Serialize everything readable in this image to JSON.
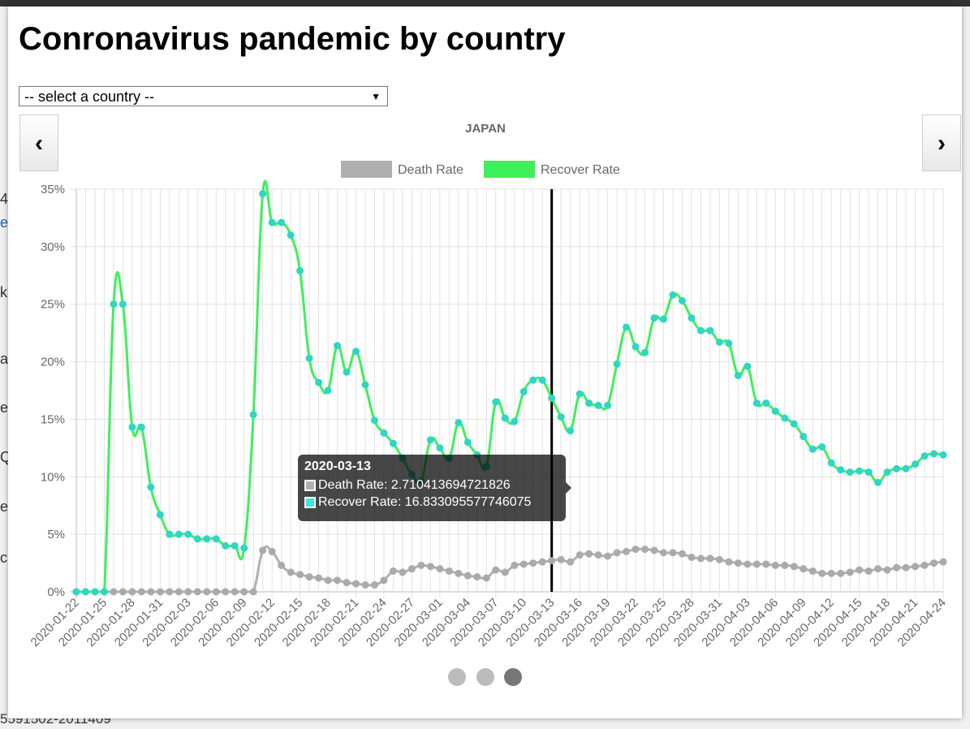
{
  "page": {
    "title": "Conronavirus pandemic by country",
    "select_placeholder": "-- select a country --",
    "prev_button": "‹",
    "next_button": "›",
    "background_fragments": [
      "4",
      "et",
      "k",
      "ac",
      "e",
      "Q",
      "e",
      "c"
    ],
    "background_footer": "5591502-2011409"
  },
  "chart_data": {
    "type": "line",
    "title": "JAPAN",
    "categories": [
      "2020-01-22",
      null,
      null,
      "2020-01-25",
      null,
      null,
      "2020-01-28",
      null,
      null,
      "2020-01-31",
      null,
      null,
      "2020-02-03",
      null,
      null,
      "2020-02-06",
      null,
      null,
      "2020-02-09",
      null,
      null,
      "2020-02-12",
      null,
      null,
      "2020-02-15",
      null,
      null,
      "2020-02-18",
      null,
      null,
      "2020-02-21",
      null,
      null,
      "2020-02-24",
      null,
      null,
      "2020-02-27",
      null,
      null,
      "2020-03-01",
      null,
      null,
      "2020-03-04",
      null,
      null,
      "2020-03-07",
      null,
      null,
      "2020-03-10",
      null,
      null,
      "2020-03-13",
      null,
      null,
      "2020-03-16",
      null,
      null,
      "2020-03-19",
      null,
      null,
      "2020-03-22",
      null,
      null,
      "2020-03-25",
      null,
      null,
      "2020-03-28",
      null,
      null,
      "2020-03-31",
      null,
      null,
      "2020-04-03",
      null,
      null,
      "2020-04-06",
      null,
      null,
      "2020-04-09",
      null,
      null,
      "2020-04-12",
      null,
      null,
      "2020-04-15",
      null,
      null,
      "2020-04-18",
      null,
      null,
      "2020-04-21",
      null,
      null,
      "2020-04-24"
    ],
    "series": [
      {
        "name": "Death Rate",
        "color": "#b0b0b0",
        "values": [
          0,
          0,
          0,
          0,
          0,
          0,
          0,
          0,
          0,
          0,
          0,
          0,
          0,
          0,
          0,
          0,
          0,
          0,
          0,
          0,
          3.6,
          3.5,
          2.3,
          1.7,
          1.5,
          1.3,
          1.2,
          1.0,
          1.0,
          0.8,
          0.7,
          0.6,
          0.6,
          1.0,
          1.8,
          1.7,
          2.0,
          2.3,
          2.2,
          2.0,
          1.8,
          1.6,
          1.4,
          1.3,
          1.2,
          1.9,
          1.7,
          2.3,
          2.4,
          2.5,
          2.6,
          2.710413694721826,
          2.8,
          2.6,
          3.2,
          3.3,
          3.2,
          3.1,
          3.4,
          3.5,
          3.7,
          3.7,
          3.6,
          3.4,
          3.4,
          3.3,
          3.0,
          2.9,
          2.9,
          2.8,
          2.6,
          2.5,
          2.4,
          2.4,
          2.4,
          2.3,
          2.3,
          2.2,
          2.0,
          1.8,
          1.6,
          1.6,
          1.6,
          1.7,
          1.9,
          1.8,
          2.0,
          1.9,
          2.1,
          2.1,
          2.2,
          2.3,
          2.5,
          2.6
        ]
      },
      {
        "name": "Recover Rate",
        "color": "#3ef05a",
        "values": [
          0,
          0,
          0,
          0,
          25,
          25,
          14.3,
          14.3,
          9.1,
          6.7,
          5.0,
          5.0,
          5.0,
          4.6,
          4.6,
          4.6,
          4.0,
          4.0,
          3.8,
          15.4,
          34.6,
          32.1,
          32.1,
          31.0,
          27.9,
          20.3,
          18.2,
          17.5,
          21.4,
          19.1,
          20.9,
          18.0,
          14.9,
          13.8,
          12.9,
          11.6,
          10.2,
          9.6,
          13.2,
          12.5,
          11.6,
          14.7,
          13.0,
          11.9,
          10.9,
          16.5,
          15.1,
          14.8,
          17.4,
          18.4,
          18.4,
          16.833095577746075,
          15.2,
          14.0,
          17.2,
          16.4,
          16.2,
          16.2,
          19.8,
          23.0,
          21.3,
          20.8,
          23.8,
          23.7,
          25.8,
          25.3,
          23.8,
          22.7,
          22.7,
          21.7,
          21.6,
          18.8,
          19.6,
          16.4,
          16.4,
          15.7,
          15.1,
          14.6,
          13.5,
          12.4,
          12.6,
          11.2,
          10.6,
          10.4,
          10.5,
          10.4,
          9.5,
          10.4,
          10.7,
          10.7,
          11.1,
          11.8,
          12.0,
          11.9
        ]
      }
    ],
    "ylim": [
      0,
      35
    ],
    "yticks": [
      {
        "value": 0,
        "label": "0%"
      },
      {
        "value": 5,
        "label": "5%"
      },
      {
        "value": 10,
        "label": "10%"
      },
      {
        "value": 15,
        "label": "15%"
      },
      {
        "value": 20,
        "label": "20%"
      },
      {
        "value": 25,
        "label": "25%"
      },
      {
        "value": 30,
        "label": "30%"
      },
      {
        "value": 35,
        "label": "35%"
      }
    ],
    "grid": true,
    "legend": "top"
  }
}
